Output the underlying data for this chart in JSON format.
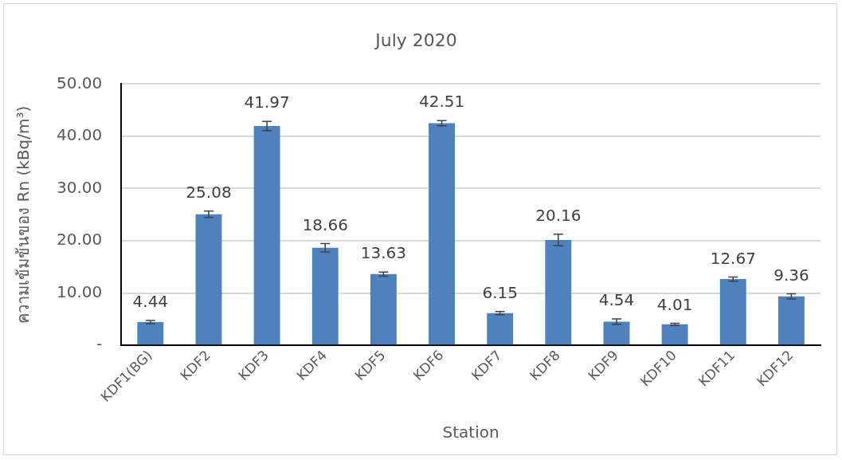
{
  "chart_data": {
    "type": "bar",
    "title": "July 2020",
    "xlabel": "Station",
    "ylabel": "ความเข้มข้นของ Rn (kBq/m³)",
    "categories": [
      "KDF1(BG)",
      "KDF2",
      "KDF3",
      "KDF4",
      "KDF5",
      "KDF6",
      "KDF7",
      "KDF8",
      "KDF9",
      "KDF10",
      "KDF11",
      "KDF12"
    ],
    "values": [
      4.44,
      25.08,
      41.97,
      18.66,
      13.63,
      42.51,
      6.15,
      20.16,
      4.54,
      4.01,
      12.67,
      9.36
    ],
    "errors": [
      0.3,
      0.6,
      0.9,
      0.8,
      0.4,
      0.5,
      0.3,
      1.1,
      0.5,
      0.2,
      0.4,
      0.5
    ],
    "color": "#4f81bd",
    "ylim": [
      0,
      50
    ],
    "yticks": [
      {
        "value": 0,
        "label": "-"
      },
      {
        "value": 10,
        "label": "10.00"
      },
      {
        "value": 20,
        "label": "20.00"
      },
      {
        "value": 30,
        "label": "30.00"
      },
      {
        "value": 40,
        "label": "40.00"
      },
      {
        "value": 50,
        "label": "50.00"
      }
    ],
    "grid": "y",
    "legend": false,
    "data_labels": true
  }
}
